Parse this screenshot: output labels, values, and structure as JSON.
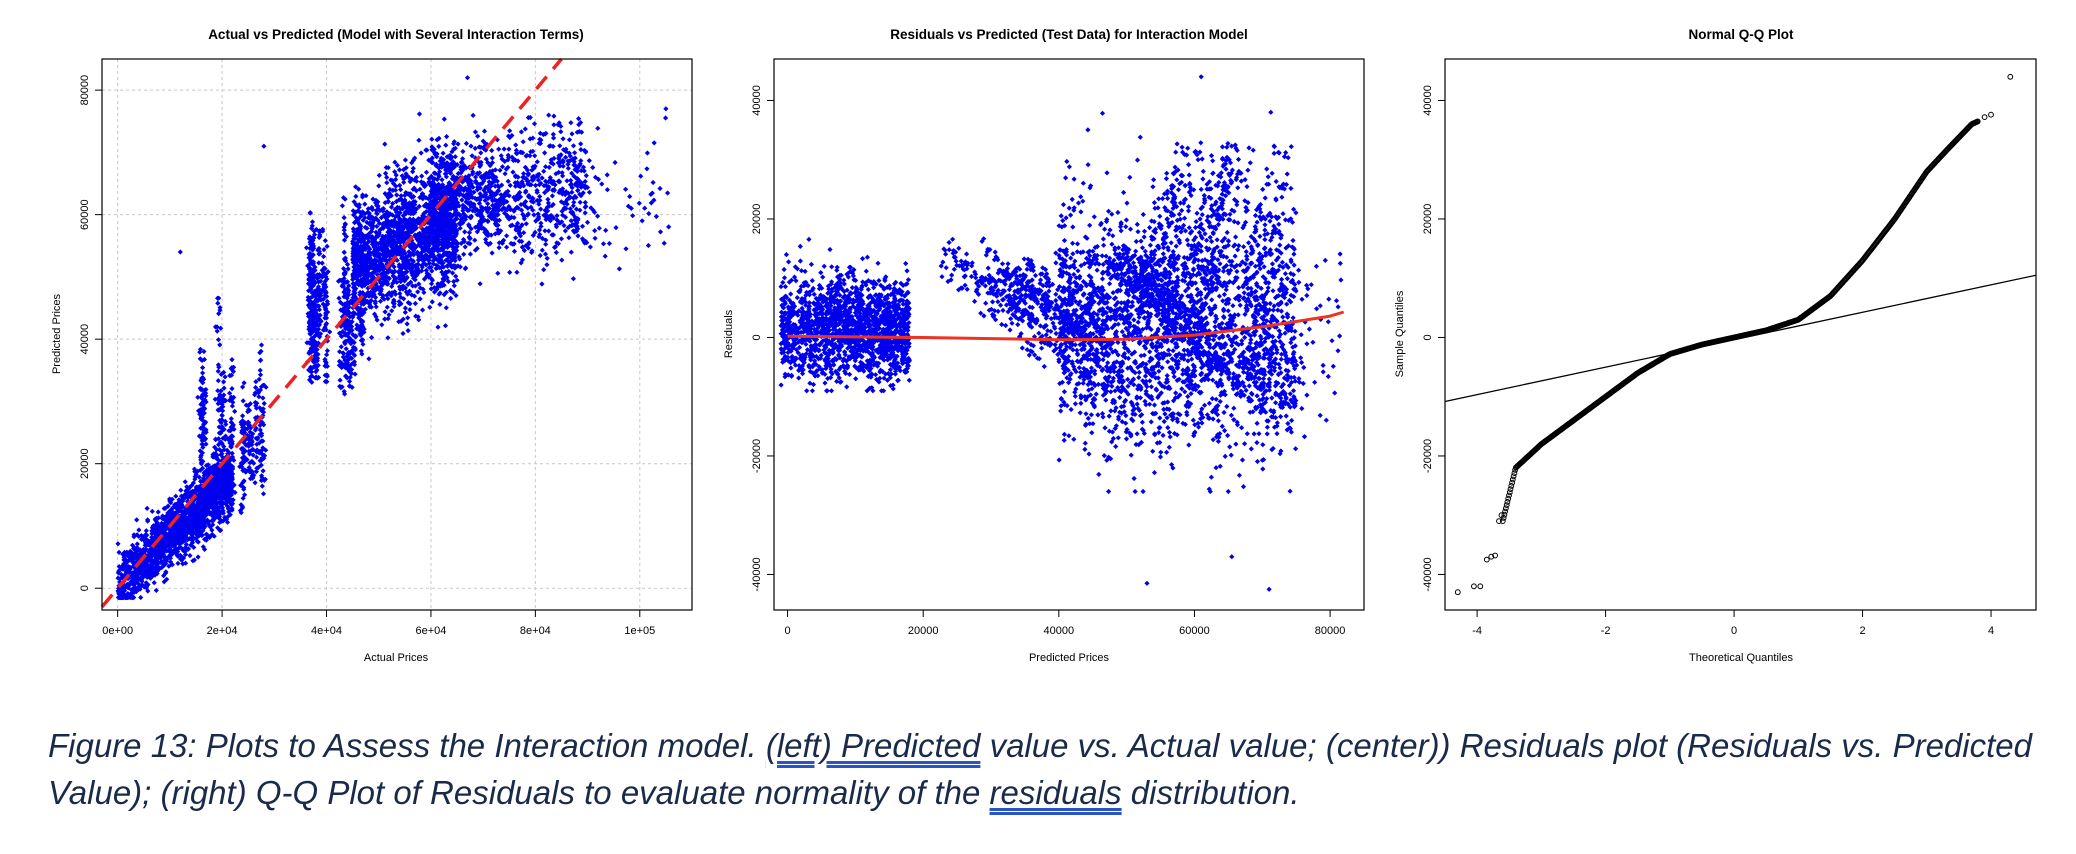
{
  "chart_data": [
    {
      "type": "scatter",
      "title": "Actual vs Predicted (Model with Several Interaction Terms)",
      "xlabel": "Actual Prices",
      "ylabel": "Predicted Prices",
      "xlim": [
        -3000,
        110000
      ],
      "ylim": [
        -3500,
        85000
      ],
      "x_ticks": [
        0,
        20000,
        40000,
        60000,
        80000,
        100000
      ],
      "x_tick_labels": [
        "0e+00",
        "2e+04",
        "4e+04",
        "6e+04",
        "8e+04",
        "1e+05"
      ],
      "y_ticks": [
        0,
        20000,
        40000,
        60000,
        80000
      ],
      "y_tick_labels": [
        "0",
        "20000",
        "40000",
        "60000",
        "80000"
      ],
      "grid": true,
      "point_color": "#0000ee",
      "reference_line": {
        "description": "y = x",
        "color": "#ee2222",
        "style": "dashed",
        "points": [
          [
            -3000,
            -3000
          ],
          [
            85000,
            85000
          ]
        ]
      },
      "clusters": [
        {
          "x_range": [
            0,
            22000
          ],
          "y_range": [
            -1000,
            20000
          ],
          "trend": "along",
          "density": "very high"
        },
        {
          "x_range": [
            15000,
            30000
          ],
          "y_range": [
            15000,
            45000
          ],
          "trend": "vertical",
          "density": "medium"
        },
        {
          "x_range": [
            35000,
            48000
          ],
          "y_range": [
            30000,
            65000
          ],
          "trend": "vertical",
          "density": "high"
        },
        {
          "x_range": [
            45000,
            65000
          ],
          "y_range": [
            40000,
            70000
          ],
          "trend": "flat",
          "density": "very high"
        },
        {
          "x_range": [
            60000,
            90000
          ],
          "y_range": [
            48000,
            82000
          ],
          "trend": "flat",
          "density": "high"
        },
        {
          "x_range": [
            85000,
            106000
          ],
          "y_range": [
            55000,
            78000
          ],
          "trend": "flat",
          "density": "sparse"
        }
      ],
      "outliers": [
        [
          12000,
          54000
        ],
        [
          28000,
          71000
        ],
        [
          105000,
          77000
        ],
        [
          67000,
          82000
        ]
      ]
    },
    {
      "type": "scatter",
      "title": "Residuals vs Predicted (Test Data) for Interaction Model",
      "xlabel": "Predicted Prices",
      "ylabel": "Residuals",
      "xlim": [
        -2000,
        85000
      ],
      "ylim": [
        -46000,
        47000
      ],
      "x_ticks": [
        0,
        20000,
        40000,
        60000,
        80000
      ],
      "x_tick_labels": [
        "0",
        "20000",
        "40000",
        "60000",
        "80000"
      ],
      "y_ticks": [
        -40000,
        -20000,
        0,
        20000,
        40000
      ],
      "y_tick_labels": [
        "-40000",
        "-20000",
        "0",
        "20000",
        "40000"
      ],
      "grid": false,
      "point_color": "#0000ee",
      "smooth_line": {
        "color": "#ee3322",
        "x": [
          0,
          10000,
          20000,
          30000,
          40000,
          50000,
          60000,
          70000,
          80000,
          82000
        ],
        "y": [
          200,
          100,
          0,
          -200,
          -400,
          -300,
          400,
          1800,
          3600,
          4300
        ]
      },
      "clusters": [
        {
          "x_range": [
            -1000,
            18000
          ],
          "y_range": [
            -9000,
            17000
          ],
          "density": "very high"
        },
        {
          "x_range": [
            19000,
            50000
          ],
          "y_range": [
            -22000,
            15000
          ],
          "density": "diagonal bands"
        },
        {
          "x_range": [
            40000,
            75000
          ],
          "y_range": [
            -25000,
            40000
          ],
          "density": "very high"
        },
        {
          "x_range": [
            70000,
            82000
          ],
          "y_range": [
            -15000,
            12000
          ],
          "density": "sparse"
        }
      ],
      "outliers": [
        [
          61000,
          44000
        ],
        [
          53000,
          -41500
        ],
        [
          65500,
          -37000
        ],
        [
          71000,
          -42500
        ]
      ]
    },
    {
      "type": "scatter",
      "title": "Normal Q-Q Plot",
      "xlabel": "Theoretical Quantiles",
      "ylabel": "Sample Quantiles",
      "xlim": [
        -4.5,
        4.7
      ],
      "ylim": [
        -46000,
        47000
      ],
      "x_ticks": [
        -4,
        -2,
        0,
        2,
        4
      ],
      "x_tick_labels": [
        "-4",
        "-2",
        "0",
        "2",
        "4"
      ],
      "y_ticks": [
        -40000,
        -20000,
        0,
        20000,
        40000
      ],
      "y_tick_labels": [
        "-40000",
        "-20000",
        "0",
        "20000",
        "40000"
      ],
      "grid": false,
      "point_style": "open circles",
      "point_color": "#000000",
      "qq_line": {
        "color": "#000000",
        "points": [
          [
            -4.5,
            -10800
          ],
          [
            4.7,
            10500
          ]
        ]
      },
      "sample_curve": {
        "x": [
          -4.3,
          -4.0,
          -3.8,
          -3.6,
          -3.4,
          -3.0,
          -2.5,
          -2.0,
          -1.5,
          -1.0,
          -0.5,
          0.0,
          0.5,
          1.0,
          1.5,
          2.0,
          2.5,
          3.0,
          3.3,
          3.7,
          4.0,
          4.3
        ],
        "y": [
          -43000,
          -42000,
          -37000,
          -31000,
          -22000,
          -18000,
          -14000,
          -10000,
          -6000,
          -2800,
          -1200,
          0,
          1200,
          3000,
          7000,
          13000,
          20000,
          28000,
          31500,
          36000,
          37500,
          44000
        ]
      }
    }
  ],
  "caption": {
    "before_first_link": "Figure 13: Plots to Assess the Interaction model. ",
    "first_link": "(left)  Predicted",
    "middle": " value vs. Actual value; (center)) Residuals plot (Residuals vs. Predicted Value); (right) Q-Q Plot of Residuals to evaluate normality of the ",
    "second_link": "residuals",
    "end": " distribution."
  }
}
